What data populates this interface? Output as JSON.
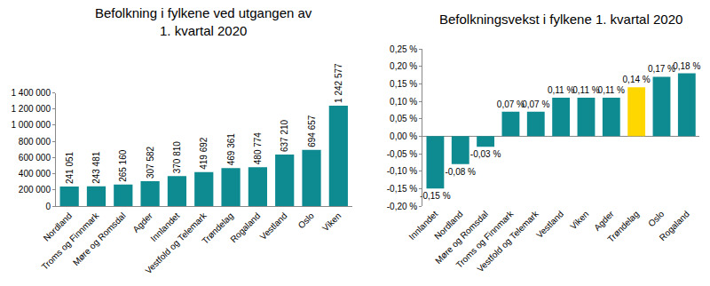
{
  "chart_data": [
    {
      "type": "bar",
      "title": "Befolkning i fylkene ved utgangen av 1. kvartal 2020",
      "categories": [
        "Nordland",
        "Troms og Finnmark",
        "Møre og Romsdal",
        "Agder",
        "Innlandet",
        "Vestfold og Telemark",
        "Trøndelag",
        "Rogaland",
        "Vestland",
        "Oslo",
        "Viken"
      ],
      "values": [
        241051,
        243481,
        265160,
        307582,
        370810,
        419692,
        469361,
        480774,
        637210,
        694657,
        1242577
      ],
      "value_labels": [
        "241 051",
        "243 481",
        "265 160",
        "307 582",
        "370 810",
        "419 692",
        "469 361",
        "480 774",
        "637 210",
        "694 657",
        "1 242 577"
      ],
      "color": "#0e8a91",
      "ylim": [
        0,
        1400000
      ],
      "yticks": [
        0,
        {
          "value": 200000,
          "label": "200 000"
        },
        {
          "value": 400000,
          "label": "400 000"
        },
        {
          "value": 600000,
          "label": "600 000"
        },
        {
          "value": 800000,
          "label": "800 000"
        },
        {
          "value": 1000000,
          "label": "1 000 000"
        },
        {
          "value": 1200000,
          "label": "1 200 000"
        },
        {
          "value": 1400000,
          "label": "1 400 000"
        }
      ],
      "grid": false,
      "data_labels": true
    },
    {
      "type": "bar",
      "title": "Befolkningsvekst i fylkene 1. kvartal 2020",
      "categories": [
        "Innlandet",
        "Nordland",
        "Møre og Romsdal",
        "Troms og Finnmark",
        "Vestfold og Telemark",
        "Vestland",
        "Viken",
        "Agder",
        "Trøndelag",
        "Oslo",
        "Rogaland"
      ],
      "values": [
        -0.15,
        -0.08,
        -0.03,
        0.07,
        0.07,
        0.11,
        0.11,
        0.11,
        0.14,
        0.17,
        0.18
      ],
      "value_labels": [
        "-0,15 %",
        "-0,08 %",
        "-0,03 %",
        "0,07 %",
        "0,07 %",
        "0,11 %",
        "0,11 %",
        "0,11 %",
        "0,14 %",
        "0,17 %",
        "0,18 %"
      ],
      "colors": [
        "#0e8a91",
        "#0e8a91",
        "#0e8a91",
        "#0e8a91",
        "#0e8a91",
        "#0e8a91",
        "#0e8a91",
        "#0e8a91",
        "#ffd700",
        "#0e8a91",
        "#0e8a91"
      ],
      "ylim": [
        -0.2,
        0.25
      ],
      "yticks": [
        {
          "value": -0.2,
          "label": "-0,20 %"
        },
        {
          "value": -0.15,
          "label": "-0,15 %"
        },
        {
          "value": -0.1,
          "label": "-0,10 %"
        },
        {
          "value": -0.05,
          "label": "-0,05 %"
        },
        {
          "value": 0,
          "label": "0,00 %"
        },
        {
          "value": 0.05,
          "label": "0,05 %"
        },
        {
          "value": 0.1,
          "label": "0,10 %"
        },
        {
          "value": 0.15,
          "label": "0,15 %"
        },
        {
          "value": 0.2,
          "label": "0,20 %"
        },
        {
          "value": 0.25,
          "label": "0,25 %"
        }
      ],
      "grid": false,
      "data_labels": true
    }
  ]
}
